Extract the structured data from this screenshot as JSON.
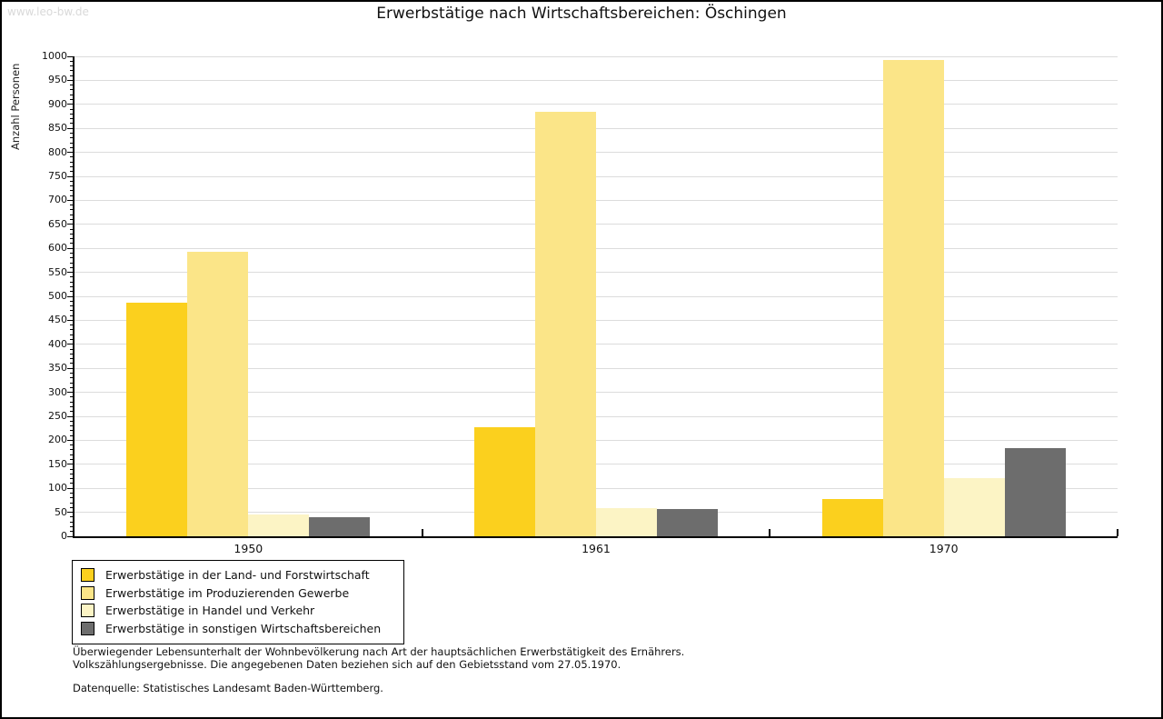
{
  "watermark": "www.leo-bw.de",
  "title": "Erwerbstätige nach Wirtschaftsbereichen: Öschingen",
  "chart_data": {
    "type": "bar",
    "title": "Erwerbstätige nach Wirtschaftsbereichen: Öschingen",
    "xlabel": "",
    "ylabel": "Anzahl Personen",
    "categories": [
      "1950",
      "1961",
      "1970"
    ],
    "series": [
      {
        "name": "Erwerbstätige in der Land- und Forstwirtschaft",
        "color": "#fbd01e",
        "values": [
          487,
          227,
          78
        ]
      },
      {
        "name": "Erwerbstätige im Produzierenden Gewerbe",
        "color": "#fbe588",
        "values": [
          593,
          884,
          992
        ]
      },
      {
        "name": "Erwerbstätige in Handel und Verkehr",
        "color": "#fcf4c5",
        "values": [
          45,
          58,
          122
        ]
      },
      {
        "name": "Erwerbstätige in sonstigen Wirtschaftsbereichen",
        "color": "#6d6d6d",
        "values": [
          40,
          57,
          184
        ]
      }
    ],
    "ylim": [
      0,
      1000
    ],
    "ytick_step": 50,
    "minor_tick_step": 10,
    "grid": true,
    "gridline_color": "#dcdcdc",
    "legend_position": "bottom-left"
  },
  "footnotes": {
    "line1": "Überwiegender Lebensunterhalt der Wohnbevölkerung nach Art der hauptsächlichen Erwerbstätigkeit des Ernährers.",
    "line2": "Volkszählungsergebnisse. Die angegebenen Daten beziehen sich auf den Gebietsstand vom 27.05.1970.",
    "source": "Datenquelle: Statistisches Landesamt Baden-Württemberg."
  }
}
